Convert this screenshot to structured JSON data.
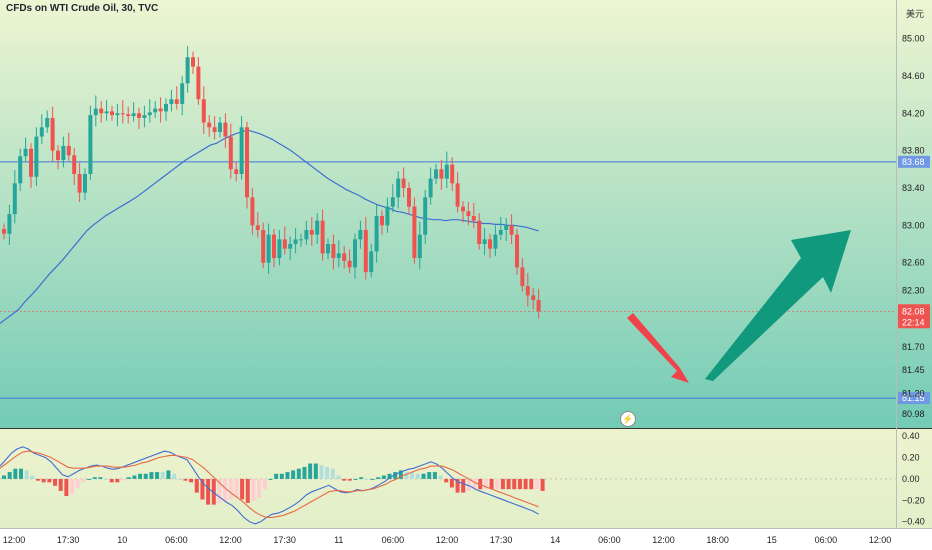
{
  "title": "CFDs on WTI Crude Oil, 30, TVC",
  "unit": "美元",
  "flash_icon": "lightning-icon",
  "colors": {
    "bg_top": "#eef5d2",
    "bg_bottom": "#73cbb6",
    "up": "#26a69a",
    "down": "#ef5350",
    "ma": "#3f6fd0",
    "hline": "#3c78d8",
    "arrow_down": "#f0424a",
    "arrow_up": "#10997c",
    "macd": "#3f6fd0",
    "signal": "#e56a48",
    "hist_pos": "#26a69a",
    "hist_neg": "#ef5350"
  },
  "chart_data": {
    "type": "candlestick",
    "x_ticks": [
      "12:00",
      "17:30",
      "10",
      "06:00",
      "12:00",
      "17:30",
      "11",
      "06:00",
      "12:00",
      "17:30",
      "14",
      "06:00",
      "12:00",
      "18:00",
      "15",
      "06:00",
      "12:00"
    ],
    "y_ticks": [
      "85.00",
      "84.60",
      "84.20",
      "83.80",
      "83.40",
      "83.00",
      "82.60",
      "82.30",
      "81.70",
      "81.45",
      "81.20",
      "80.98"
    ],
    "price_range": [
      80.98,
      85.22
    ],
    "horizontal_lines": [
      {
        "value": 83.68,
        "label": "83.68"
      },
      {
        "value": 81.15,
        "label": "81.15"
      }
    ],
    "last_price": {
      "value": 82.08,
      "label": "82.08",
      "countdown": "22:14"
    },
    "series": [
      {
        "name": "price",
        "values": [
          82.91,
          83.12,
          83.45,
          83.74,
          83.82,
          83.52,
          83.95,
          84.05,
          84.15,
          83.8,
          83.7,
          83.85,
          83.75,
          83.55,
          83.35,
          83.55,
          84.18,
          84.25,
          84.2,
          84.22,
          84.18,
          84.2,
          84.19,
          84.17,
          84.2,
          84.15,
          84.18,
          84.21,
          84.25,
          84.22,
          84.3,
          84.35,
          84.3,
          84.52,
          84.8,
          84.7,
          84.35,
          84.1,
          84.05,
          84.0,
          84.1,
          83.95,
          83.6,
          83.55,
          84.05,
          83.3,
          83.0,
          82.95,
          82.6,
          82.9,
          82.65,
          82.85,
          82.75,
          82.8,
          82.85,
          82.85,
          82.95,
          82.9,
          83.05,
          82.7,
          82.8,
          82.65,
          82.7,
          82.62,
          82.55,
          82.85,
          82.95,
          82.5,
          82.72,
          83.1,
          83.0,
          83.2,
          83.3,
          83.5,
          83.4,
          83.2,
          82.65,
          82.9,
          83.3,
          83.5,
          83.6,
          83.5,
          83.65,
          83.45,
          83.2,
          83.15,
          83.1,
          83.05,
          82.8,
          82.85,
          82.75,
          82.9,
          82.95,
          83.0,
          82.9,
          82.55,
          82.35,
          82.25,
          82.2,
          82.08
        ]
      }
    ],
    "moving_average": [
      81.95,
      82.0,
      82.05,
      82.1,
      82.18,
      82.25,
      82.32,
      82.4,
      82.48,
      82.55,
      82.62,
      82.7,
      82.78,
      82.86,
      82.94,
      83.0,
      83.05,
      83.1,
      83.14,
      83.18,
      83.22,
      83.26,
      83.3,
      83.35,
      83.4,
      83.45,
      83.5,
      83.55,
      83.6,
      83.65,
      83.7,
      83.74,
      83.78,
      83.82,
      83.86,
      83.88,
      83.92,
      83.95,
      83.98,
      84.0,
      84.02,
      84.0,
      83.98,
      83.95,
      83.92,
      83.88,
      83.84,
      83.8,
      83.75,
      83.7,
      83.65,
      83.6,
      83.55,
      83.5,
      83.46,
      83.42,
      83.38,
      83.35,
      83.32,
      83.28,
      83.25,
      83.22,
      83.2,
      83.18,
      83.15,
      83.14,
      83.12,
      83.1,
      83.08,
      83.07,
      83.06,
      83.06,
      83.05,
      83.06,
      83.06,
      83.05,
      83.04,
      83.03,
      83.02,
      83.02,
      83.01,
      83.01,
      83.0,
      83.0,
      82.99,
      82.98,
      82.96,
      82.94
    ],
    "indicator": {
      "y_ticks": [
        "0.40",
        "0.20",
        "0.00",
        "−0.20",
        "−0.40"
      ],
      "range": [
        -0.44,
        0.42
      ],
      "macd": [
        0.12,
        0.18,
        0.24,
        0.28,
        0.3,
        0.28,
        0.24,
        0.22,
        0.2,
        0.16,
        0.1,
        0.04,
        0.02,
        0.05,
        0.08,
        0.1,
        0.12,
        0.13,
        0.12,
        0.1,
        0.09,
        0.1,
        0.12,
        0.14,
        0.16,
        0.18,
        0.2,
        0.22,
        0.24,
        0.26,
        0.25,
        0.22,
        0.2,
        0.18,
        0.1,
        0.02,
        -0.05,
        -0.1,
        -0.14,
        -0.18,
        -0.22,
        -0.25,
        -0.3,
        -0.36,
        -0.4,
        -0.42,
        -0.4,
        -0.36,
        -0.33,
        -0.32,
        -0.3,
        -0.27,
        -0.24,
        -0.2,
        -0.15,
        -0.12,
        -0.1,
        -0.08,
        -0.06,
        -0.09,
        -0.12,
        -0.13,
        -0.12,
        -0.1,
        -0.11,
        -0.1,
        -0.08,
        -0.05,
        -0.02,
        0.02,
        0.05,
        0.07,
        0.09,
        0.1,
        0.12,
        0.14,
        0.16,
        0.14,
        0.1,
        0.05,
        0.0,
        -0.03,
        -0.05,
        -0.07,
        -0.1,
        -0.12,
        -0.14,
        -0.16,
        -0.18,
        -0.2,
        -0.22,
        -0.24,
        -0.26,
        -0.28,
        -0.3,
        -0.33
      ],
      "signal": [
        0.1,
        0.14,
        0.18,
        0.22,
        0.25,
        0.26,
        0.25,
        0.24,
        0.22,
        0.2,
        0.17,
        0.14,
        0.11,
        0.1,
        0.1,
        0.1,
        0.11,
        0.12,
        0.12,
        0.12,
        0.11,
        0.11,
        0.11,
        0.12,
        0.13,
        0.15,
        0.16,
        0.18,
        0.2,
        0.21,
        0.22,
        0.22,
        0.21,
        0.2,
        0.18,
        0.14,
        0.1,
        0.05,
        0.0,
        -0.05,
        -0.1,
        -0.14,
        -0.18,
        -0.22,
        -0.27,
        -0.31,
        -0.34,
        -0.36,
        -0.36,
        -0.35,
        -0.34,
        -0.32,
        -0.3,
        -0.27,
        -0.24,
        -0.21,
        -0.18,
        -0.15,
        -0.12,
        -0.11,
        -0.11,
        -0.12,
        -0.12,
        -0.11,
        -0.11,
        -0.1,
        -0.09,
        -0.07,
        -0.05,
        -0.02,
        0.0,
        0.03,
        0.05,
        0.07,
        0.09,
        0.1,
        0.12,
        0.12,
        0.12,
        0.1,
        0.08,
        0.05,
        0.02,
        -0.01,
        -0.04,
        -0.06,
        -0.08,
        -0.1,
        -0.12,
        -0.14,
        -0.16,
        -0.18,
        -0.2,
        -0.22,
        -0.24,
        -0.26
      ]
    }
  }
}
